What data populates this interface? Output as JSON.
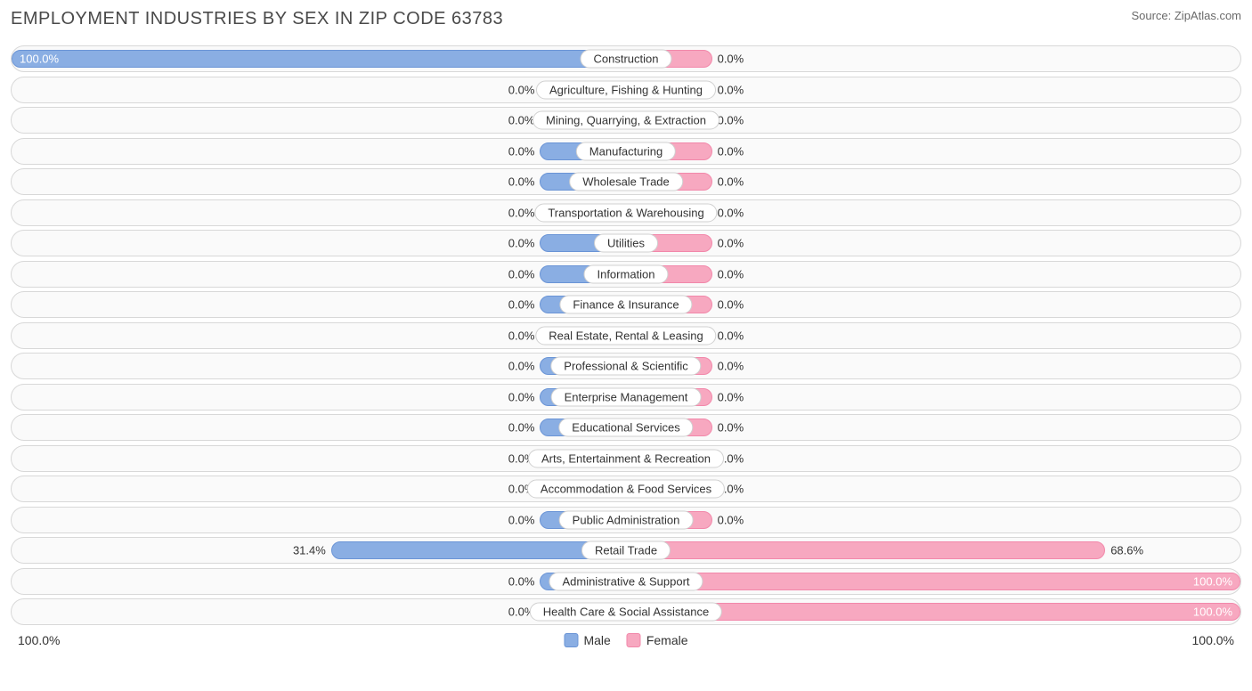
{
  "header": {
    "title": "EMPLOYMENT INDUSTRIES BY SEX IN ZIP CODE 63783",
    "source": "Source: ZipAtlas.com"
  },
  "chart": {
    "type": "diverging-bar",
    "male_color": "#8aaee3",
    "male_border": "#6a94d6",
    "female_color": "#f7a8c0",
    "female_border": "#f288aa",
    "row_bg": "#fafafa",
    "row_border": "#d8d8d8",
    "label_bg": "#ffffff",
    "label_border": "#d0d0d0",
    "text_color": "#333333",
    "default_bar_pct": 14,
    "rows": [
      {
        "category": "Construction",
        "male": 100.0,
        "female": 0.0,
        "male_bar_pct": 100,
        "female_bar_pct": 14,
        "male_label_inside": true
      },
      {
        "category": "Agriculture, Fishing & Hunting",
        "male": 0.0,
        "female": 0.0
      },
      {
        "category": "Mining, Quarrying, & Extraction",
        "male": 0.0,
        "female": 0.0
      },
      {
        "category": "Manufacturing",
        "male": 0.0,
        "female": 0.0
      },
      {
        "category": "Wholesale Trade",
        "male": 0.0,
        "female": 0.0
      },
      {
        "category": "Transportation & Warehousing",
        "male": 0.0,
        "female": 0.0
      },
      {
        "category": "Utilities",
        "male": 0.0,
        "female": 0.0
      },
      {
        "category": "Information",
        "male": 0.0,
        "female": 0.0
      },
      {
        "category": "Finance & Insurance",
        "male": 0.0,
        "female": 0.0
      },
      {
        "category": "Real Estate, Rental & Leasing",
        "male": 0.0,
        "female": 0.0
      },
      {
        "category": "Professional & Scientific",
        "male": 0.0,
        "female": 0.0
      },
      {
        "category": "Enterprise Management",
        "male": 0.0,
        "female": 0.0
      },
      {
        "category": "Educational Services",
        "male": 0.0,
        "female": 0.0
      },
      {
        "category": "Arts, Entertainment & Recreation",
        "male": 0.0,
        "female": 0.0
      },
      {
        "category": "Accommodation & Food Services",
        "male": 0.0,
        "female": 0.0
      },
      {
        "category": "Public Administration",
        "male": 0.0,
        "female": 0.0
      },
      {
        "category": "Retail Trade",
        "male": 31.4,
        "female": 68.6,
        "male_bar_pct": 48,
        "female_bar_pct": 78
      },
      {
        "category": "Administrative & Support",
        "male": 0.0,
        "female": 100.0,
        "male_bar_pct": 14,
        "female_bar_pct": 100,
        "female_label_inside": true
      },
      {
        "category": "Health Care & Social Assistance",
        "male": 0.0,
        "female": 100.0,
        "male_bar_pct": 14,
        "female_bar_pct": 100,
        "female_label_inside": true
      }
    ]
  },
  "footer": {
    "axis_left": "100.0%",
    "axis_right": "100.0%",
    "legend": [
      {
        "label": "Male",
        "color": "#8aaee3",
        "border": "#6a94d6"
      },
      {
        "label": "Female",
        "color": "#f7a8c0",
        "border": "#f288aa"
      }
    ]
  }
}
